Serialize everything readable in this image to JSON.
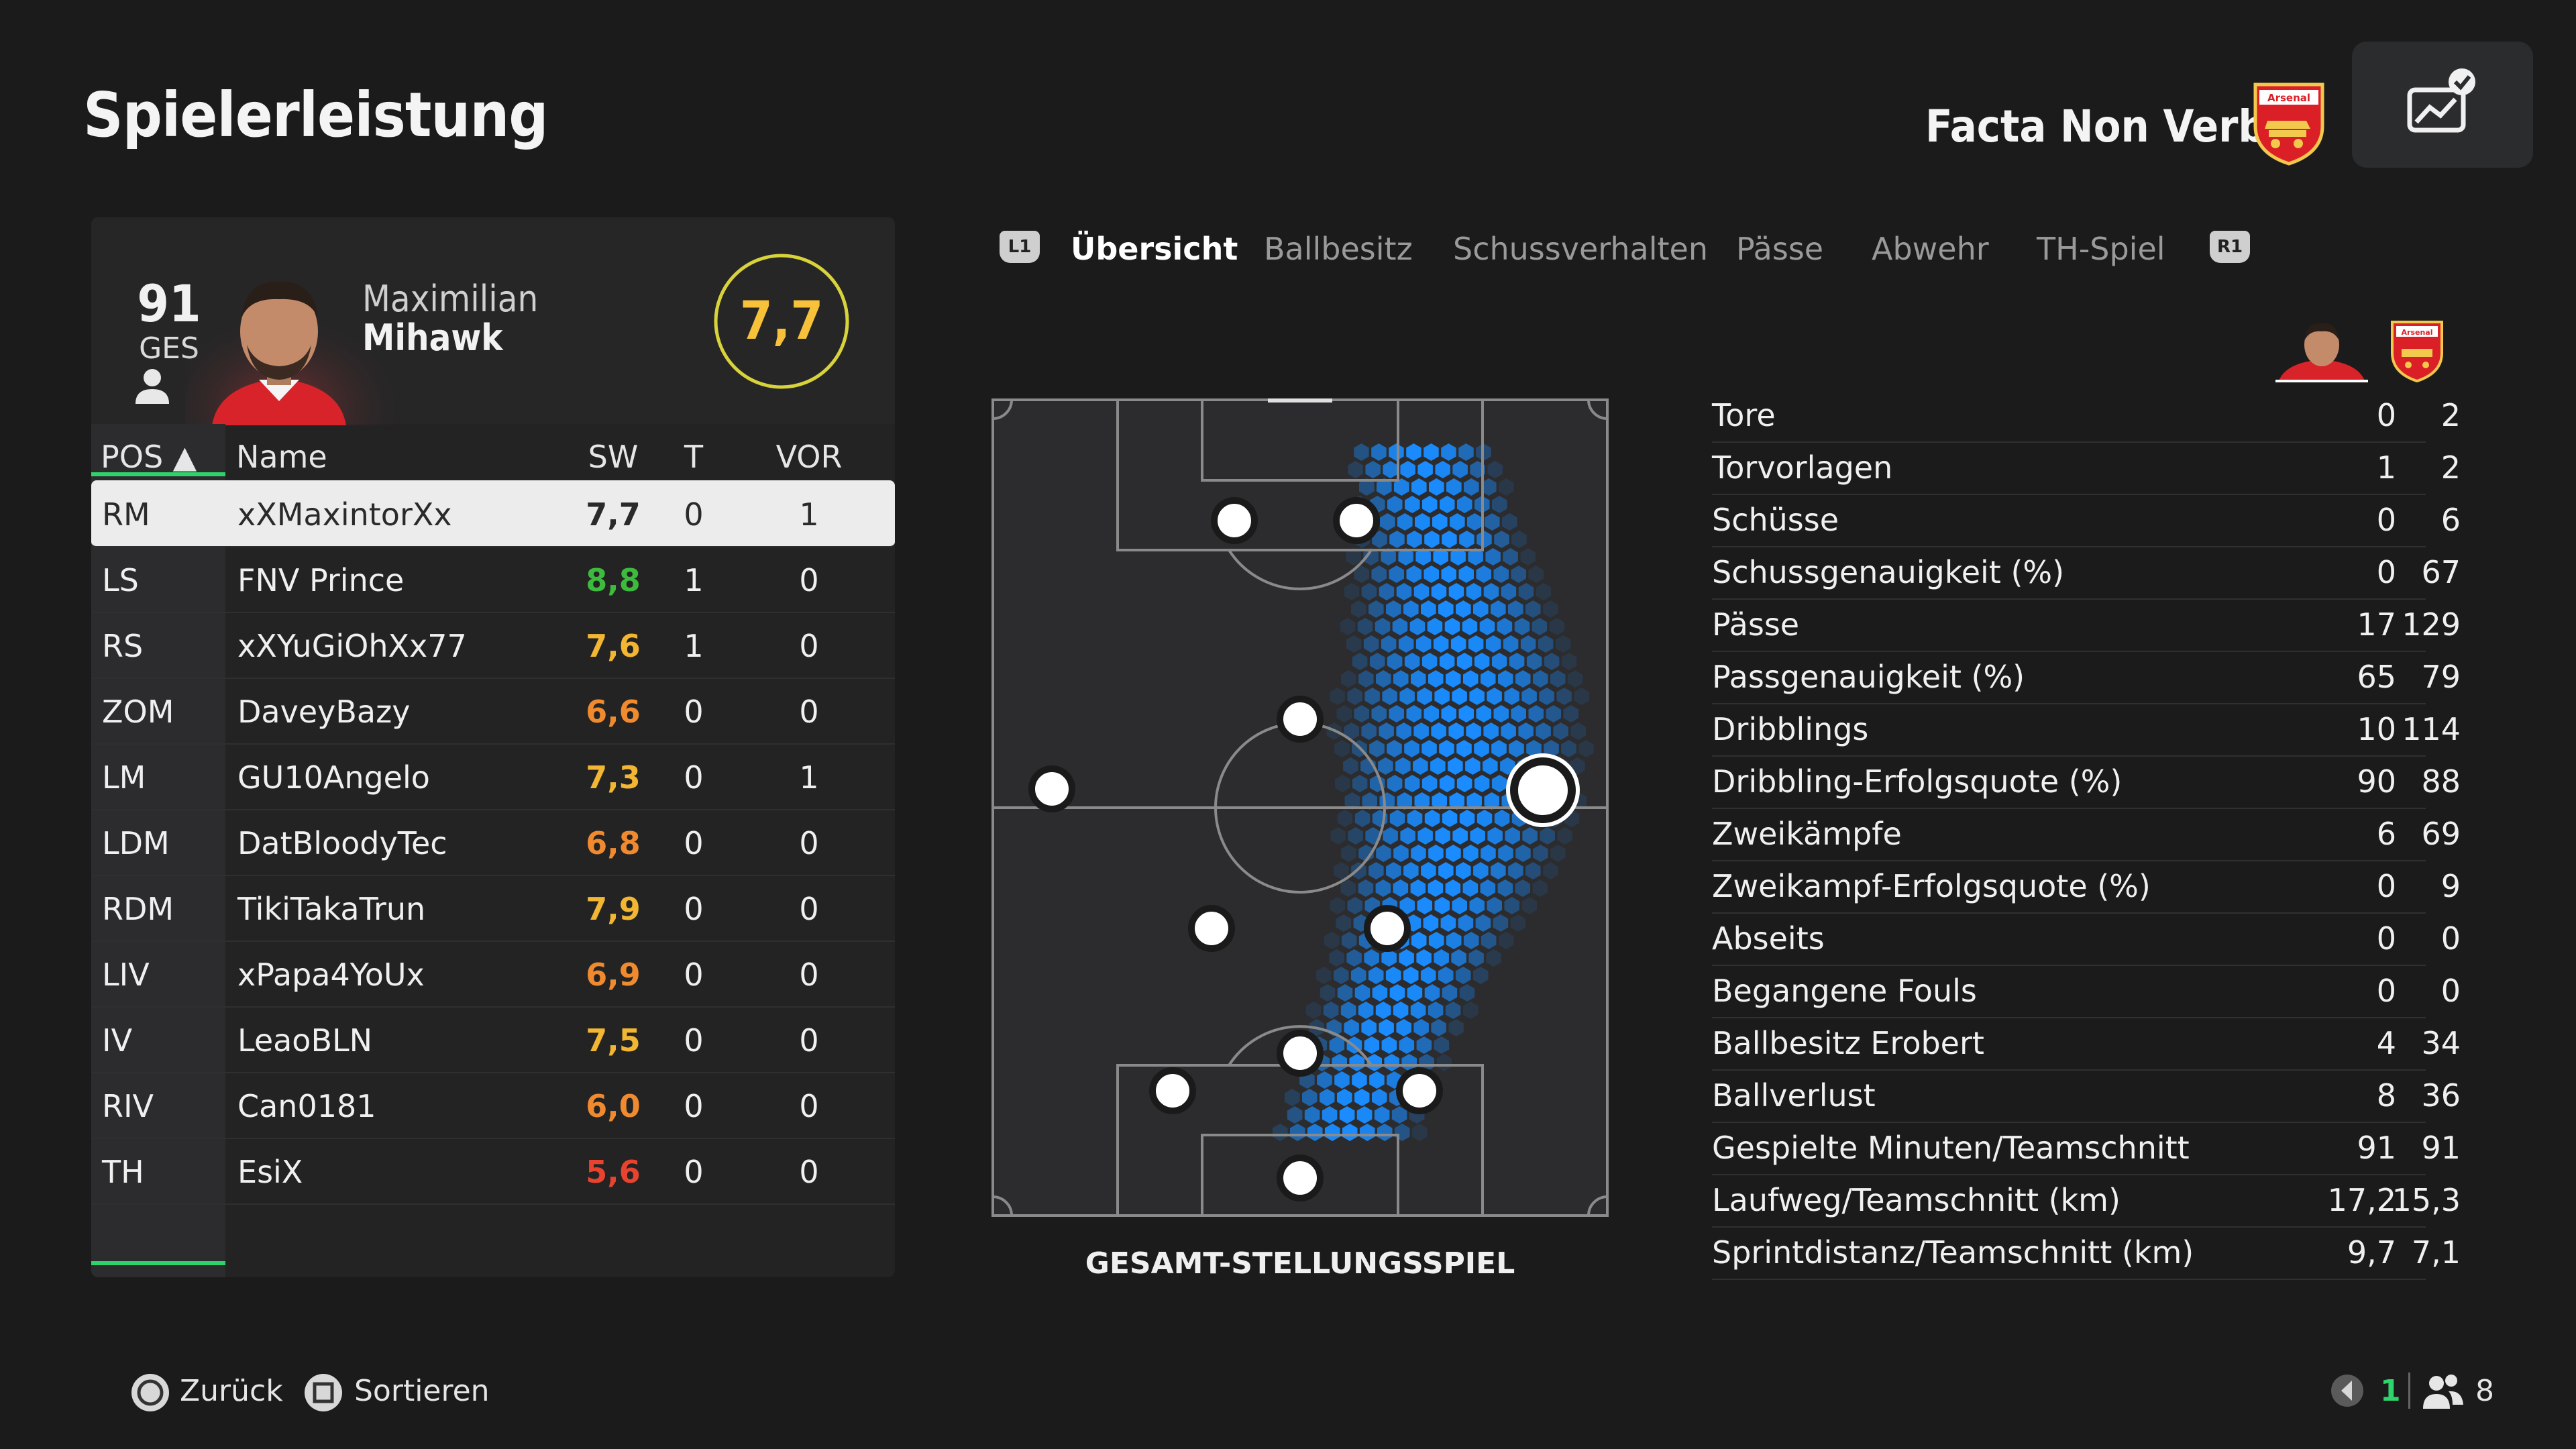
{
  "header": {
    "page_title": "Spielerleistung",
    "club_name": "Facta Non Verba",
    "crest_text": "Arsenal"
  },
  "player": {
    "overall": "91",
    "overall_label": "GES",
    "first_name": "Maximilian",
    "last_name": "Mihawk",
    "match_rating": "7,7"
  },
  "table": {
    "headers": {
      "pos": "POS ▲",
      "name": "Name",
      "sw": "SW",
      "t": "T",
      "vor": "VOR"
    },
    "rows": [
      {
        "pos": "RM",
        "name": "xXMaxintorXx",
        "sw": "7,7",
        "t": "0",
        "vor": "1",
        "sw_color": "#333333"
      },
      {
        "pos": "LS",
        "name": "FNV Prince",
        "sw": "8,8",
        "t": "1",
        "vor": "0",
        "sw_color": "#3dbb3d"
      },
      {
        "pos": "RS",
        "name": "xXYuGiOhXx77",
        "sw": "7,6",
        "t": "1",
        "vor": "0",
        "sw_color": "#f2b632"
      },
      {
        "pos": "ZOM",
        "name": "DaveyBazy",
        "sw": "6,6",
        "t": "0",
        "vor": "0",
        "sw_color": "#f08a2e"
      },
      {
        "pos": "LM",
        "name": "GU10Angelo",
        "sw": "7,3",
        "t": "0",
        "vor": "1",
        "sw_color": "#f2b632"
      },
      {
        "pos": "LDM",
        "name": "DatBloodyTec",
        "sw": "6,8",
        "t": "0",
        "vor": "0",
        "sw_color": "#f08a2e"
      },
      {
        "pos": "RDM",
        "name": "TikiTakaTrun",
        "sw": "7,9",
        "t": "0",
        "vor": "0",
        "sw_color": "#f2b632"
      },
      {
        "pos": "LIV",
        "name": "xPapa4YoUx",
        "sw": "6,9",
        "t": "0",
        "vor": "0",
        "sw_color": "#f08a2e"
      },
      {
        "pos": "IV",
        "name": "LeaoBLN",
        "sw": "7,5",
        "t": "0",
        "vor": "0",
        "sw_color": "#f2b632"
      },
      {
        "pos": "RIV",
        "name": "Can0181",
        "sw": "6,0",
        "t": "0",
        "vor": "0",
        "sw_color": "#f08a2e"
      },
      {
        "pos": "TH",
        "name": "EsiX",
        "sw": "5,6",
        "t": "0",
        "vor": "0",
        "sw_color": "#e8432f"
      }
    ]
  },
  "tabs": {
    "left_key": "L1",
    "right_key": "R1",
    "items": [
      "Übersicht",
      "Ballbesitz",
      "Schussverhalten",
      "Pässe",
      "Abwehr",
      "TH-Spiel"
    ],
    "active": "Übersicht"
  },
  "pitch": {
    "caption": "GESAMT-STELLUNGSSPIEL"
  },
  "stats": [
    {
      "label": "Tore",
      "player": "0",
      "team": "2"
    },
    {
      "label": "Torvorlagen",
      "player": "1",
      "team": "2"
    },
    {
      "label": "Schüsse",
      "player": "0",
      "team": "6"
    },
    {
      "label": "Schussgenauigkeit (%)",
      "player": "0",
      "team": "67"
    },
    {
      "label": "Pässe",
      "player": "17",
      "team": "129"
    },
    {
      "label": "Passgenauigkeit (%)",
      "player": "65",
      "team": "79"
    },
    {
      "label": "Dribblings",
      "player": "10",
      "team": "114"
    },
    {
      "label": "Dribbling-Erfolgsquote (%)",
      "player": "90",
      "team": "88"
    },
    {
      "label": "Zweikämpfe",
      "player": "6",
      "team": "69"
    },
    {
      "label": "Zweikampf-Erfolgsquote (%)",
      "player": "0",
      "team": "9"
    },
    {
      "label": "Abseits",
      "player": "0",
      "team": "0"
    },
    {
      "label": "Begangene Fouls",
      "player": "0",
      "team": "0"
    },
    {
      "label": "Ballbesitz Erobert",
      "player": "4",
      "team": "34"
    },
    {
      "label": "Ballverlust",
      "player": "8",
      "team": "36"
    },
    {
      "label": "Gespielte Minuten/Teamschnitt",
      "player": "91",
      "team": "91"
    },
    {
      "label": "Laufweg/Teamschnitt (km)",
      "player": "17,2",
      "team": "15,3"
    },
    {
      "label": "Sprintdistanz/Teamschnitt (km)",
      "player": "9,7",
      "team": "7,1"
    }
  ],
  "footer": {
    "back_label": "Zurück",
    "sort_label": "Sortieren",
    "mic_count": "1",
    "party_count": "8"
  },
  "colors": {
    "accent_green": "#2fd36b",
    "rating_yellow": "#f7c23a",
    "heatmap_blue": "#1a8cff",
    "arsenal_red": "#db1f26"
  }
}
